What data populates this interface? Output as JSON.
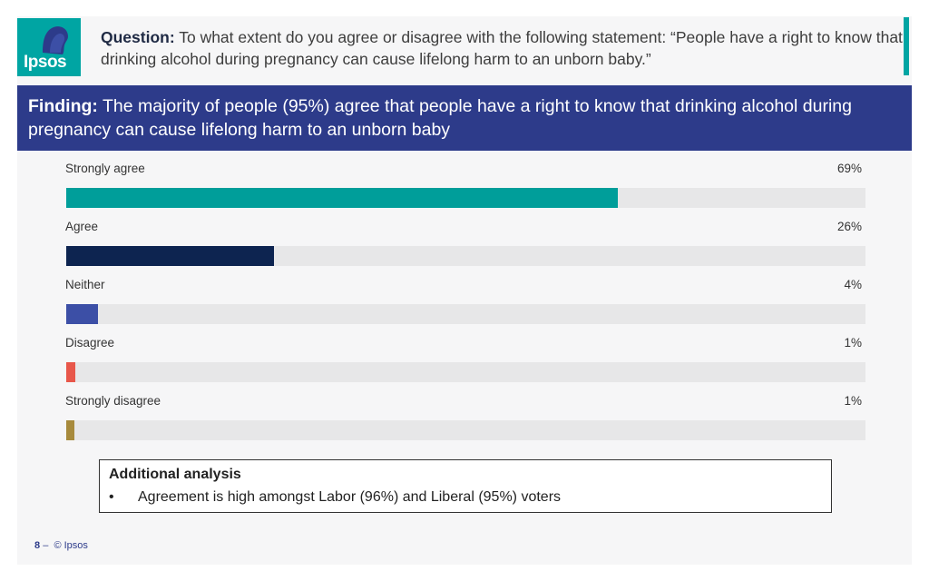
{
  "header": {
    "logo_text": "Ipsos",
    "question_label": "Question:",
    "question_text": "To what extent do you agree or disagree with the following statement: “People have a right to know that drinking alcohol during pregnancy can cause lifelong harm to an unborn baby.”"
  },
  "finding": {
    "label": "Finding:",
    "text": "The majority of people (95%) agree that people have a right to know that drinking alcohol during pregnancy can cause lifelong harm to an unborn baby"
  },
  "chart_data": {
    "type": "bar",
    "orientation": "horizontal",
    "categories": [
      "Strongly agree",
      "Agree",
      "Neither",
      "Disagree",
      "Strongly disagree"
    ],
    "values": [
      69,
      26,
      4,
      1,
      1
    ],
    "value_labels": [
      "69%",
      "26%",
      "4%",
      "1%",
      "1%"
    ],
    "colors": [
      "#009e9a",
      "#0d2450",
      "#3c4fa6",
      "#e8574a",
      "#a78a3c"
    ],
    "xlim": [
      0,
      100
    ],
    "grid": false
  },
  "analysis": {
    "title": "Additional analysis",
    "bullet": "•",
    "text": "Agreement is high amongst Labor (96%) and Liberal (95%) voters"
  },
  "footer": {
    "page_number": "8",
    "dash": "–",
    "copyright": "© Ipsos"
  }
}
